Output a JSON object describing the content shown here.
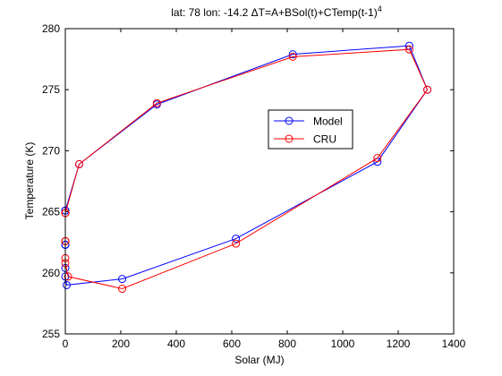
{
  "chart_data": {
    "type": "line",
    "title_main": "lat: 78 lon: -14.2  ΔT=A+BSol(t)+CTemp(t-1)",
    "title_sup": "4",
    "xlabel": "Solar (MJ)",
    "ylabel": "Temperature (K)",
    "xlim": [
      0,
      1400
    ],
    "ylim": [
      255,
      280
    ],
    "xticks": [
      0,
      200,
      400,
      600,
      800,
      1000,
      1200,
      1400
    ],
    "yticks": [
      255,
      260,
      265,
      270,
      275,
      280
    ],
    "grid": false,
    "legend_position": "center",
    "series": [
      {
        "name": "Model",
        "color": "#0000ff",
        "marker": "circle",
        "x": [
          0,
          0,
          0,
          50,
          330,
          820,
          1240,
          1305,
          1125,
          615,
          205,
          5,
          0,
          0,
          0
        ],
        "y": [
          262.3,
          265.1,
          265.1,
          268.9,
          273.8,
          277.9,
          278.6,
          275.0,
          269.1,
          262.8,
          259.5,
          259.0,
          259.7,
          260.4,
          262.3
        ]
      },
      {
        "name": "CRU",
        "color": "#ff0000",
        "marker": "circle",
        "x": [
          0,
          0,
          0,
          50,
          330,
          820,
          1240,
          1305,
          1125,
          615,
          205,
          10,
          0,
          0,
          0
        ],
        "y": [
          262.6,
          264.9,
          264.9,
          268.9,
          273.9,
          277.7,
          278.3,
          275.0,
          269.4,
          262.4,
          258.7,
          259.7,
          260.8,
          261.2,
          262.6
        ]
      }
    ]
  }
}
